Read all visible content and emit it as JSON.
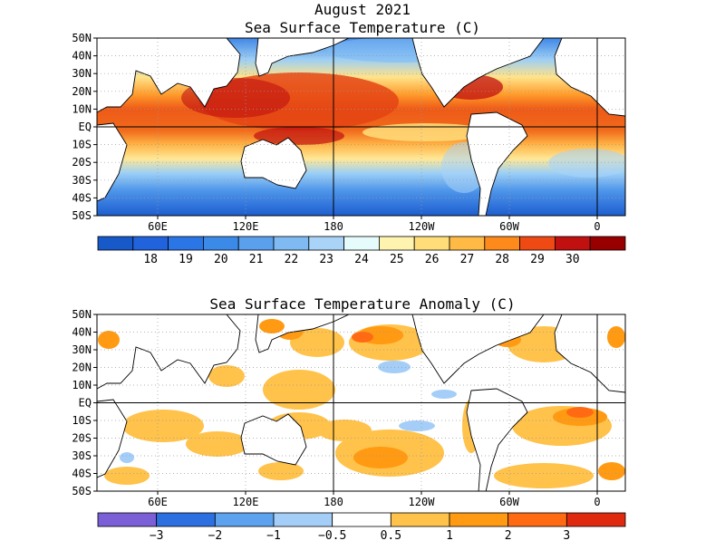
{
  "header": {
    "month_year": "August 2021",
    "sst_title": "Sea Surface Temperature (C)",
    "anomaly_title": "Sea Surface Temperature Anomaly (C)"
  },
  "axes": {
    "lat_labels": [
      "50N",
      "40N",
      "30N",
      "20N",
      "10N",
      "EQ",
      "10S",
      "20S",
      "30S",
      "40S",
      "50S"
    ],
    "lon_labels": [
      "60E",
      "120E",
      "180",
      "120W",
      "60W",
      "0"
    ]
  },
  "sst_colorbar": {
    "colors": [
      "#1859c9",
      "#2163dc",
      "#2b76e6",
      "#3c8ae8",
      "#5aa0ed",
      "#7fbaf3",
      "#a9d4f8",
      "#e6fbfb",
      "#fff3b0",
      "#ffde7a",
      "#ffba45",
      "#ff8a1c",
      "#f04a14",
      "#c01010",
      "#980000"
    ],
    "labels": [
      "18",
      "19",
      "20",
      "21",
      "22",
      "23",
      "24",
      "25",
      "26",
      "27",
      "28",
      "29",
      "30"
    ]
  },
  "anomaly_colorbar": {
    "colors": [
      "#7b5fd6",
      "#2b6fe0",
      "#5da2ee",
      "#a4cef8",
      "#ffffff",
      "#ffc24a",
      "#ff9a12",
      "#ff6a12",
      "#e02a10"
    ],
    "labels": [
      "−3",
      "−2",
      "−1",
      "−0.5",
      "0.5",
      "1",
      "2",
      "3"
    ]
  }
}
